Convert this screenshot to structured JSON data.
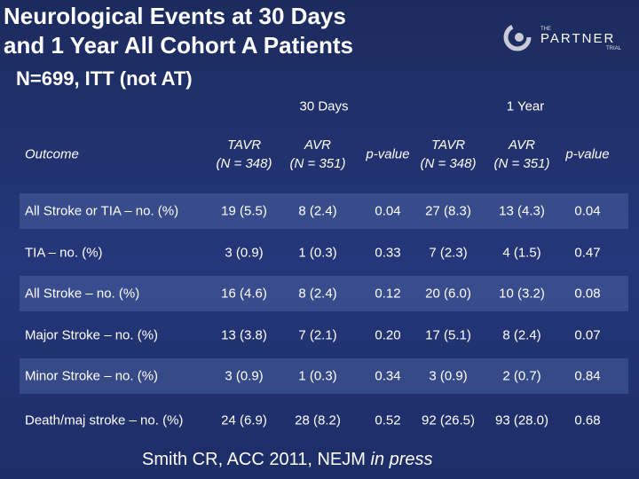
{
  "header": {
    "title_lines": [
      "Neurological Events at 30 Days",
      "and 1 Year All Cohort A Patients"
    ],
    "subtitle": "N=699,  ITT (not AT)"
  },
  "logo": {
    "small": "THE",
    "name": "PARTNER",
    "sub": "TRIAL"
  },
  "table": {
    "groups": [
      "30 Days",
      "1 Year"
    ],
    "columns": [
      [
        "Outcome"
      ],
      [
        "TAVR",
        "(N = 348)"
      ],
      [
        "AVR",
        "(N = 351)"
      ],
      [
        "p-value"
      ],
      [
        "TAVR",
        "(N = 348)"
      ],
      [
        "AVR",
        "(N = 351)"
      ],
      [
        "p-value"
      ]
    ],
    "rows": [
      [
        "All Stroke or TIA – no. (%)",
        "19 (5.5)",
        "8 (2.4)",
        "0.04",
        "27 (8.3)",
        "13 (4.3)",
        "0.04"
      ],
      [
        "TIA – no. (%)",
        "3 (0.9)",
        "1 (0.3)",
        "0.33",
        "7 (2.3)",
        "4 (1.5)",
        "0.47"
      ],
      [
        "All Stroke – no. (%)",
        "16 (4.6)",
        "8 (2.4)",
        "0.12",
        "20 (6.0)",
        "10 (3.2)",
        "0.08"
      ],
      [
        "Major Stroke – no. (%)",
        "13 (3.8)",
        "7 (2.1)",
        "0.20",
        "17 (5.1)",
        "8 (2.4)",
        "0.07"
      ],
      [
        "Minor Stroke – no. (%)",
        "3 (0.9)",
        "1 (0.3)",
        "0.34",
        "3 (0.9)",
        "2 (0.7)",
        "0.84"
      ],
      [
        "Death/maj stroke – no. (%)",
        "24 (6.9)",
        "28 (8.2)",
        "0.52",
        "92 (26.5)",
        "93 (28.0)",
        "0.68"
      ]
    ]
  },
  "footer": {
    "citation": "Smith CR, ACC 2011, NEJM",
    "note": "in press"
  }
}
